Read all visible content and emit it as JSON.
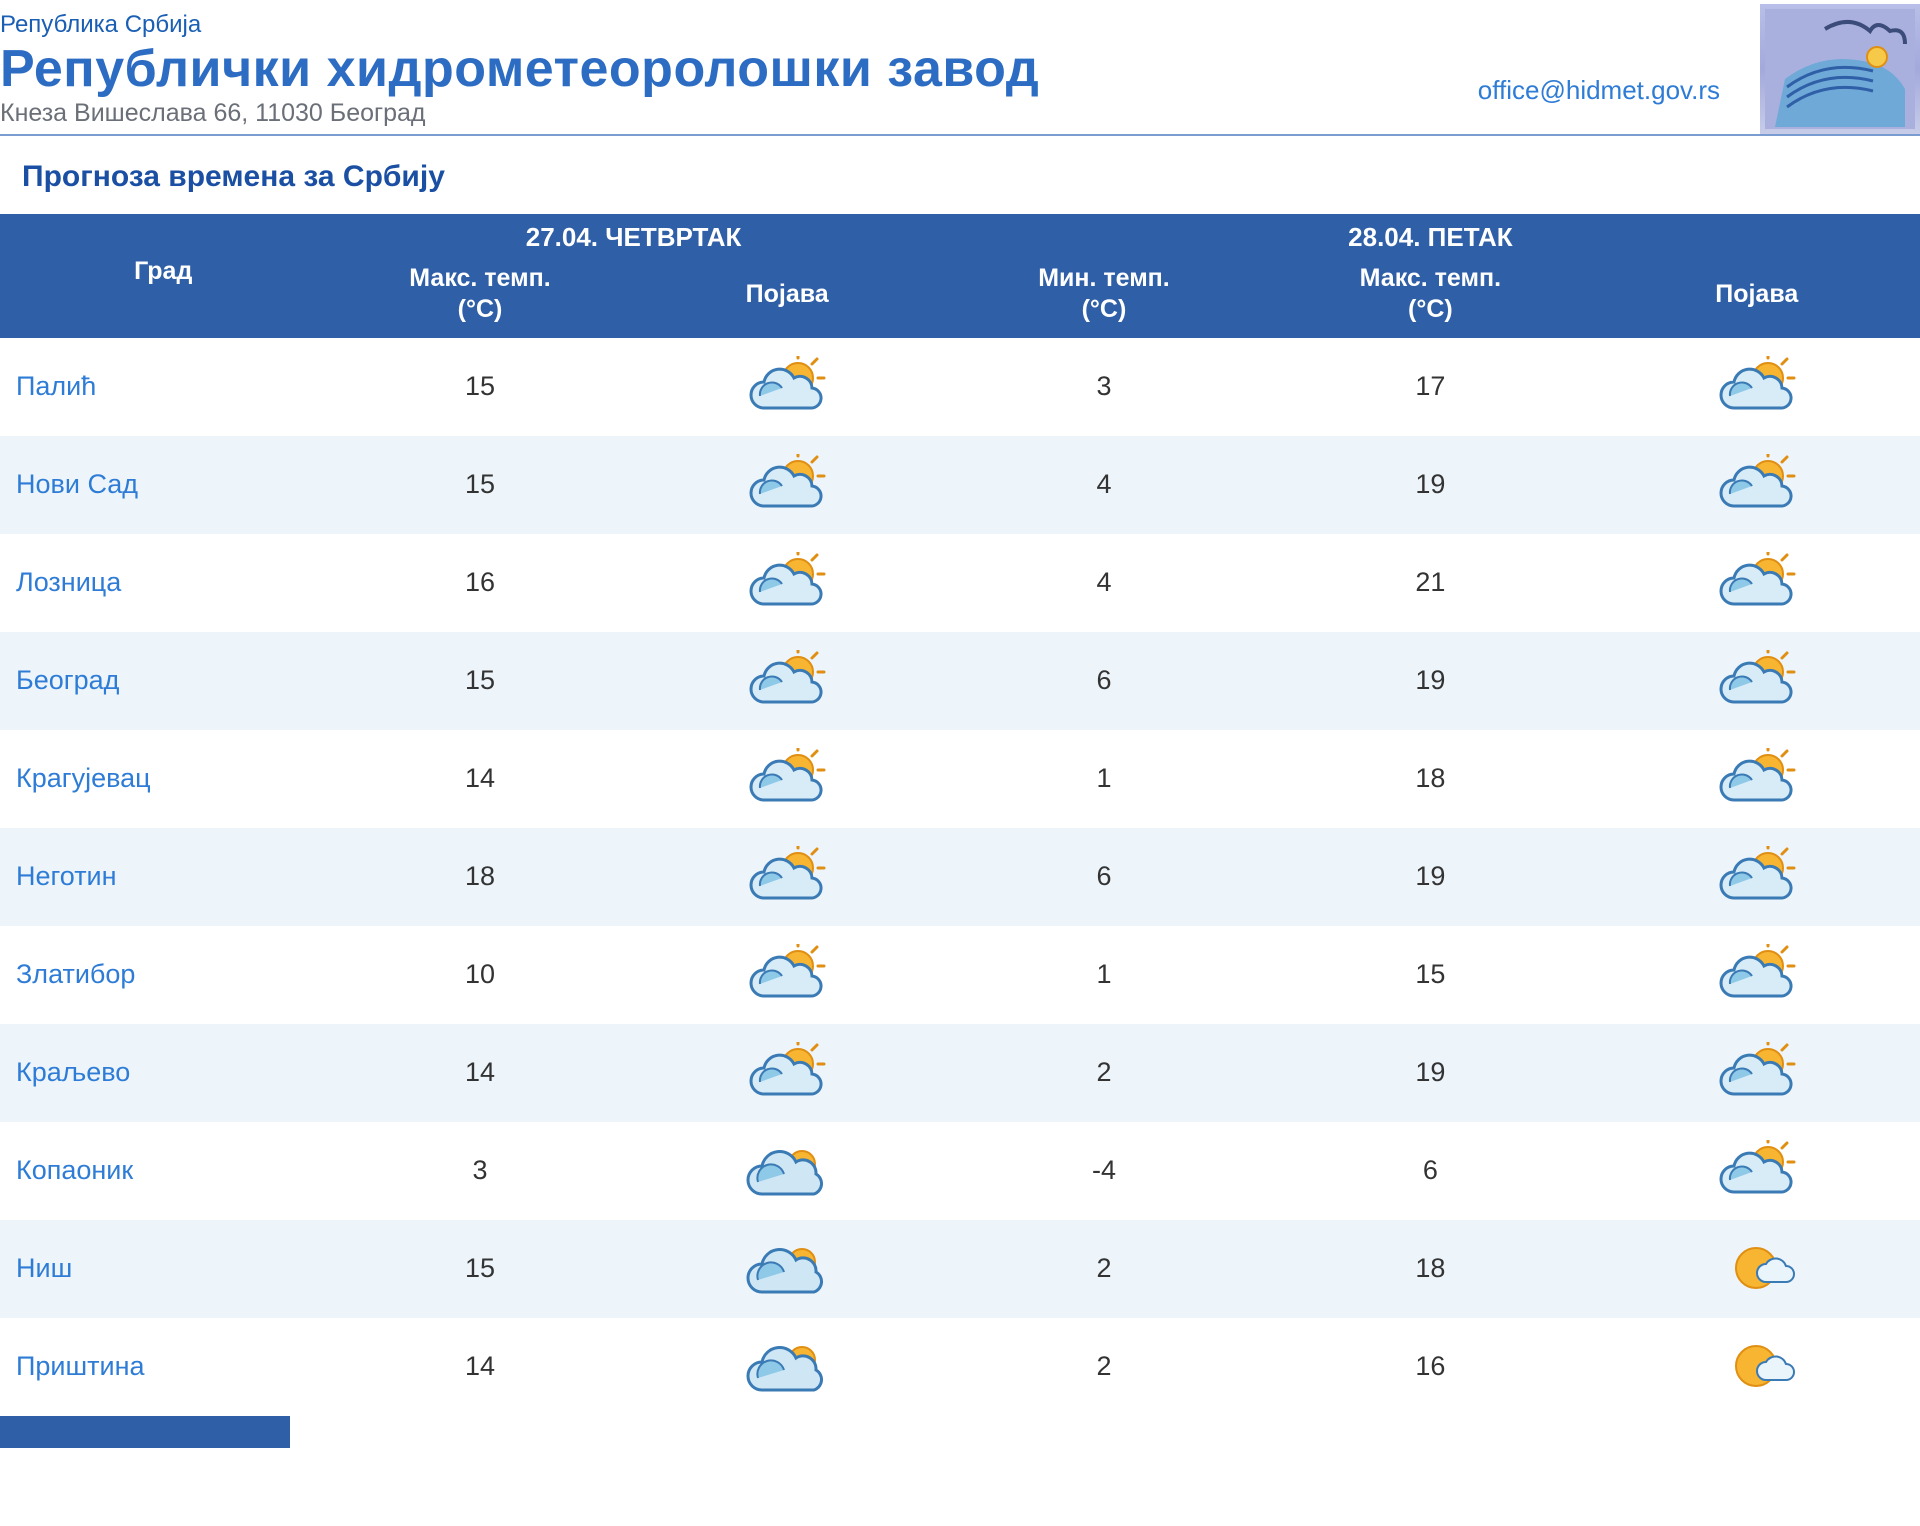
{
  "header": {
    "country": "Република Србија",
    "org": "Републички хидрометеоролошки завод",
    "address": "Кнеза Вишеслава 66, 11030 Београд",
    "email": "office@hidmet.gov.rs"
  },
  "subtitle": "Прогноза времена за Србију",
  "colors": {
    "header_blue": "#2f5fa7",
    "link_blue": "#2e7cd6",
    "row_even_bg": "#edf5fb",
    "row_odd_bg": "#ffffff",
    "text_dark": "#333333",
    "border_blue": "#7a9cd0"
  },
  "table": {
    "day1_header": "27.04. ЧЕТВРТАК",
    "day2_header": "28.04. ПЕТАК",
    "col_city": "Град",
    "col_max": "Макс. темп.",
    "col_min": "Мин. темп.",
    "col_unit": "(°C)",
    "col_cond": "Појава",
    "column_widths_pct": [
      17,
      16,
      16,
      17,
      17,
      17
    ],
    "rows": [
      {
        "city": "Палић",
        "d1_max": "15",
        "d1_cond": "partly-cloudy",
        "d2_min": "3",
        "d2_max": "17",
        "d2_cond": "partly-cloudy"
      },
      {
        "city": "Нови Сад",
        "d1_max": "15",
        "d1_cond": "partly-cloudy",
        "d2_min": "4",
        "d2_max": "19",
        "d2_cond": "partly-cloudy"
      },
      {
        "city": "Лозница",
        "d1_max": "16",
        "d1_cond": "partly-cloudy",
        "d2_min": "4",
        "d2_max": "21",
        "d2_cond": "partly-cloudy"
      },
      {
        "city": "Београд",
        "d1_max": "15",
        "d1_cond": "partly-cloudy",
        "d2_min": "6",
        "d2_max": "19",
        "d2_cond": "partly-cloudy"
      },
      {
        "city": "Крагујевац",
        "d1_max": "14",
        "d1_cond": "partly-cloudy",
        "d2_min": "1",
        "d2_max": "18",
        "d2_cond": "partly-cloudy"
      },
      {
        "city": "Неготин",
        "d1_max": "18",
        "d1_cond": "partly-cloudy",
        "d2_min": "6",
        "d2_max": "19",
        "d2_cond": "partly-cloudy"
      },
      {
        "city": "Златибор",
        "d1_max": "10",
        "d1_cond": "partly-cloudy",
        "d2_min": "1",
        "d2_max": "15",
        "d2_cond": "partly-cloudy"
      },
      {
        "city": "Краљево",
        "d1_max": "14",
        "d1_cond": "partly-cloudy",
        "d2_min": "2",
        "d2_max": "19",
        "d2_cond": "partly-cloudy"
      },
      {
        "city": "Копаоник",
        "d1_max": "3",
        "d1_cond": "mostly-cloudy",
        "d2_min": "-4",
        "d2_max": "6",
        "d2_cond": "partly-cloudy"
      },
      {
        "city": "Ниш",
        "d1_max": "15",
        "d1_cond": "mostly-cloudy",
        "d2_min": "2",
        "d2_max": "18",
        "d2_cond": "sunny"
      },
      {
        "city": "Приштина",
        "d1_max": "14",
        "d1_cond": "mostly-cloudy",
        "d2_min": "2",
        "d2_max": "16",
        "d2_cond": "sunny"
      }
    ]
  },
  "icon_palette": {
    "sun_fill": "#f7b531",
    "sun_stroke": "#e08f12",
    "cloud_fill": "#d7ecf6",
    "cloud_stroke": "#3a7ab5",
    "cloud_deep": "#8fc9e8"
  }
}
